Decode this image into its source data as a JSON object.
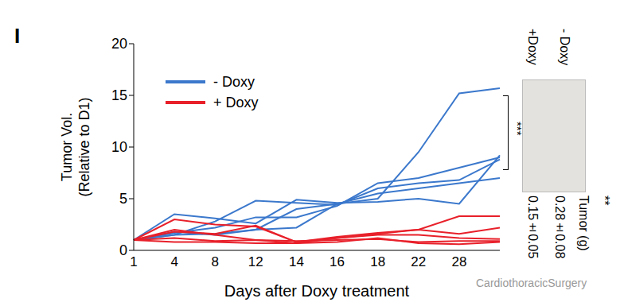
{
  "chart_data": {
    "type": "line",
    "panel_label": "I",
    "xlabel": "Days after Doxy treatment",
    "ylabel": [
      "Tumor Vol.",
      "(Relative to D1)"
    ],
    "categories": [
      "1",
      "4",
      "8",
      "12",
      "14",
      "16",
      "18",
      "22",
      "28",
      null
    ],
    "ylim": [
      0,
      20
    ],
    "yticks": [
      0,
      5,
      10,
      15,
      20
    ],
    "legend": "upper left",
    "series": [
      {
        "name": "- Doxy",
        "color": "#3b78cc",
        "values": [
          1,
          1.5,
          1.6,
          2.0,
          2.2,
          4.5,
          5.0,
          9.5,
          15.2,
          15.7
        ]
      },
      {
        "name": "- Doxy",
        "color": "#3b78cc",
        "values": [
          1,
          3.5,
          3.1,
          2.6,
          4.9,
          4.6,
          4.7,
          5.0,
          4.5,
          9.2
        ]
      },
      {
        "name": "- Doxy",
        "color": "#3b78cc",
        "values": [
          1,
          1.7,
          2.2,
          3.2,
          3.2,
          4.3,
          6.5,
          7.0,
          8.0,
          9.0
        ]
      },
      {
        "name": "- Doxy",
        "color": "#3b78cc",
        "values": [
          1,
          1.5,
          2.8,
          4.8,
          4.6,
          4.4,
          6.0,
          6.5,
          6.8,
          8.8
        ]
      },
      {
        "name": "- Doxy",
        "color": "#3b78cc",
        "values": [
          1,
          1.8,
          1.5,
          2.0,
          4.0,
          4.5,
          5.5,
          6.0,
          6.5,
          7.0
        ]
      },
      {
        "name": "+ Doxy",
        "color": "#e8202a",
        "values": [
          1,
          3.0,
          2.5,
          2.3,
          0.8,
          1.2,
          1.6,
          2.0,
          3.3,
          3.3
        ]
      },
      {
        "name": "+ Doxy",
        "color": "#e8202a",
        "values": [
          1,
          1.8,
          1.6,
          2.4,
          0.8,
          1.3,
          1.7,
          2.0,
          1.6,
          2.2
        ]
      },
      {
        "name": "+ Doxy",
        "color": "#e8202a",
        "values": [
          1,
          2.0,
          1.5,
          1.0,
          0.7,
          1.2,
          1.5,
          1.5,
          1.2,
          1.1
        ]
      },
      {
        "name": "+ Doxy",
        "color": "#e8202a",
        "values": [
          1,
          1.2,
          0.9,
          1.0,
          0.9,
          1.0,
          1.1,
          0.8,
          0.9,
          0.9
        ]
      },
      {
        "name": "+ Doxy",
        "color": "#e8202a",
        "values": [
          1,
          0.8,
          0.8,
          0.7,
          0.7,
          0.8,
          1.2,
          0.7,
          0.6,
          0.8
        ]
      }
    ],
    "annotations": {
      "significance": "***",
      "image_labels": [
        "+Doxy",
        "- Doxy"
      ],
      "weight_title": "Tumor (g)",
      "weights": [
        "0.15±0.05",
        "0.28±0.08"
      ],
      "weight_significance": "**",
      "watermark": "CardiothoracicSurgery"
    }
  }
}
